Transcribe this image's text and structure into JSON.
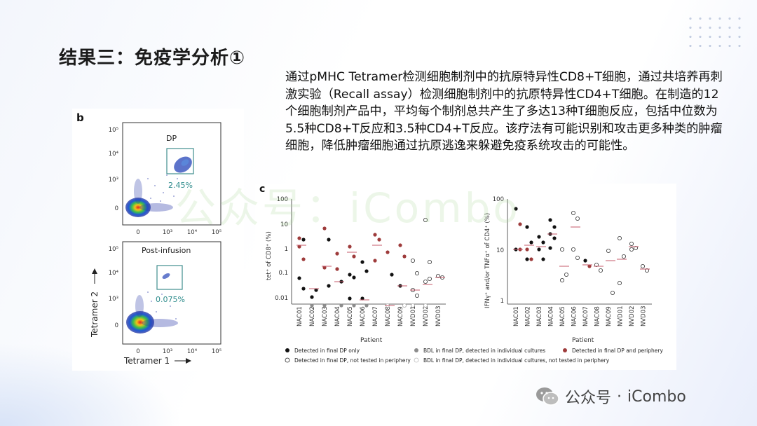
{
  "slide": {
    "title": "结果三：免疫学分析①",
    "description": "通过pMHC Tetramer检测细胞制剂中的抗原特异性CD8+T细胞，通过共培养再刺激实验（Recall assay）检测细胞制剂中的抗原特异性CD4+T细胞。在制造的12个细胞制剂产品中，平均每个制剂总共产生了多达13种T细胞反应，包括中位数为5.5种CD8+T反应和3.5种CD4+T反应。该疗法有可能识别和攻击更多种类的肿瘤细胞，降低肿瘤细胞通过抗原逃逸来躲避免疫系统攻击的可能性。",
    "watermark_center": "公众号：iCombo",
    "watermark_footer_name": "公众号",
    "watermark_footer_sep": "·",
    "watermark_footer_brand": "iCombo"
  },
  "panel_b": {
    "label": "b",
    "top_plot": {
      "gate_name": "DP",
      "percent": "2.45%"
    },
    "bottom_plot": {
      "gate_name": "Post-infusion",
      "percent": "0.075%"
    },
    "xlabel": "Tetramer 1",
    "ylabel": "Tetramer 2",
    "ticks_y": [
      "10⁵",
      "10⁴",
      "10³",
      "0"
    ],
    "ticks_x": [
      "0",
      "10³",
      "10⁴",
      "10⁵"
    ],
    "colors": {
      "gate": "#3f8e8e",
      "percent": "#2e8c8c"
    }
  },
  "panel_c": {
    "label": "c",
    "xlabel": "Patient",
    "left_ylabel": "tet⁺ of CD8⁺ (%)",
    "right_ylabel": "IFNγ⁺ and/or TNFα⁺ of CD4⁺ (%)",
    "left_yticks": [
      "100",
      "10",
      "1",
      "0.1",
      "0.01"
    ],
    "right_yticks": [
      "100",
      "10",
      "1"
    ],
    "left_patients": [
      "NAC01",
      "NAC02",
      "NAC03",
      "NAC04",
      "NAC05",
      "NAC06",
      "NAC07",
      "NAC08",
      "NAC09",
      "NVD01",
      "NVD02",
      "NVD03"
    ],
    "right_patients": [
      "NAC01",
      "NAC02",
      "NAC03",
      "NAC04",
      "NAC05",
      "NAC06",
      "NAC07",
      "NAC08",
      "NAC09",
      "NVD01",
      "NVD02",
      "NVD03"
    ],
    "legend": [
      {
        "symbol": "filled-black",
        "label": "Detected in final DP only"
      },
      {
        "symbol": "filled-grey",
        "label": "BDL in final DP, detected in individual cultures"
      },
      {
        "symbol": "filled-red",
        "label": "Detected in final DP and periphery"
      },
      {
        "symbol": "open-black",
        "label": "Detected in final DP, not tested in periphery"
      },
      {
        "symbol": "open-grey",
        "label": "BDL in final DP, detected in individual cultures, not tested in periphery"
      }
    ],
    "colors": {
      "black": "#111111",
      "red": "#9e3b3b",
      "grey": "#8c8c8c",
      "median": "#c45a6a"
    }
  }
}
